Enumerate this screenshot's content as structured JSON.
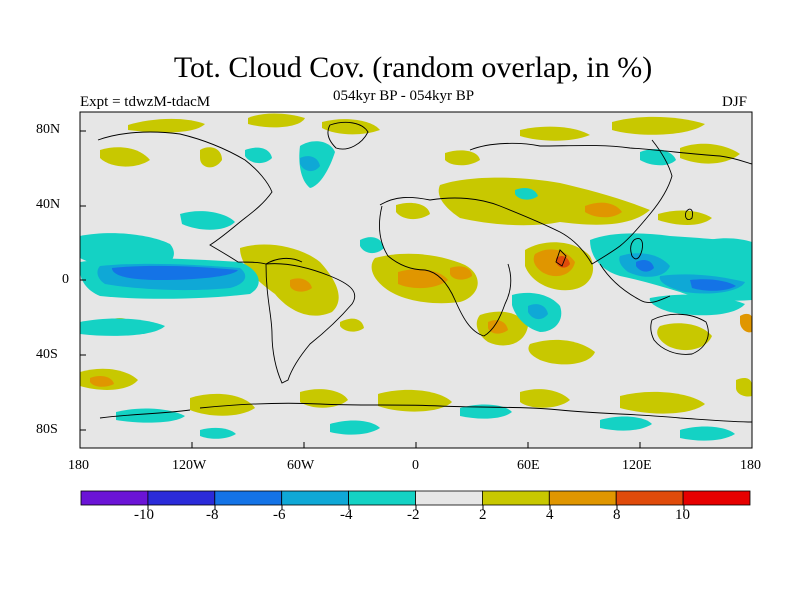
{
  "title": "Tot. Cloud Cov. (random overlap, in %)",
  "subtitle": "054kyr BP - 054kyr BP",
  "experiment": "Expt = tdwzM-tdacM",
  "season": "DJF",
  "map": {
    "projection": "cylindrical equidistant",
    "lon_range": [
      -180,
      180
    ],
    "lat_range": [
      -90,
      90
    ],
    "x_tick_labels": [
      "180",
      "120W",
      "60W",
      "0",
      "60E",
      "120E",
      "180"
    ],
    "y_tick_labels": [
      "80N",
      "40N",
      "0",
      "40S",
      "80S"
    ],
    "background_color": "#e6e6e6",
    "coastline_color": "#000000"
  },
  "colorbar": {
    "colors": [
      "#6b14d6",
      "#2b2bd9",
      "#1473e6",
      "#0fa8d6",
      "#14d2c4",
      "#e6e6e6",
      "#c8c800",
      "#e09600",
      "#e04b0a",
      "#e60000"
    ],
    "tick_labels": [
      "-10",
      "-8",
      "-6",
      "-4",
      "-2",
      "2",
      "4",
      "8",
      "10"
    ]
  }
}
